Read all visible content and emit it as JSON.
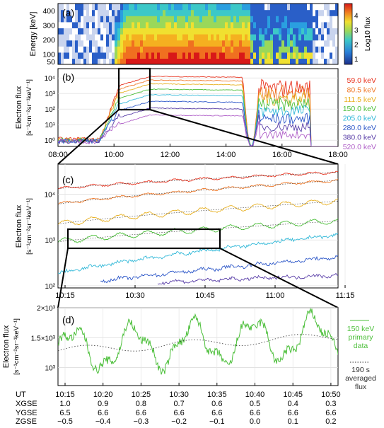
{
  "chart_data": [
    {
      "panel": "(a)",
      "type": "heatmap",
      "ylabel": "Energy [keV]",
      "yticks": [
        50,
        100,
        200,
        300,
        400
      ],
      "colorbar": {
        "label": "Log10 flux",
        "ticks": [
          1,
          2,
          3,
          4
        ]
      },
      "notes": "Electron energy spectrogram 08:00-18:00; high flux 10:00-14:50, dropouts near 14:50-15:10 and intermittent flux until ~17:00"
    },
    {
      "panel": "(b)",
      "type": "line",
      "ylabel": "Electron flux",
      "yunit": "[s⁻¹cm⁻²sr⁻¹keV⁻¹]",
      "yticks": [
        "10⁰",
        "10¹",
        "10²",
        "10³",
        "10⁴"
      ],
      "xticks": [
        "08:00",
        "10:00",
        "12:00",
        "14:00",
        "16:00",
        "18:00"
      ],
      "series": [
        {
          "name": "59.0  keV",
          "color": "#e8321e",
          "plateau": 12000
        },
        {
          "name": "80.5  keV",
          "color": "#f07a2a",
          "plateau": 7000
        },
        {
          "name": "111.5  keV",
          "color": "#e8b020",
          "plateau": 4000
        },
        {
          "name": "150.0  keV",
          "color": "#4cbf3a",
          "plateau": 1800
        },
        {
          "name": "205.0  keV",
          "color": "#30b8d8",
          "plateau": 800
        },
        {
          "name": "280.0  keV",
          "color": "#2b56c8",
          "plateau": 300
        },
        {
          "name": "380.0  keV",
          "color": "#5a3fa8",
          "plateau": 110
        },
        {
          "name": "520.0  keV",
          "color": "#b060c8",
          "plateau": 40
        }
      ]
    },
    {
      "panel": "(c)",
      "type": "line",
      "ylabel": "Electron flux",
      "yunit": "[s⁻¹cm⁻²sr⁻¹keV⁻¹]",
      "yticks": [
        "10²",
        "10³",
        "10⁴"
      ],
      "xticks": [
        "10:15",
        "10:30",
        "10:45",
        "11:00",
        "11:15"
      ],
      "series": [
        {
          "name": "59.0 keV",
          "start": 13000,
          "end": 30000
        },
        {
          "name": "80.5 keV",
          "start": 6000,
          "end": 20000
        },
        {
          "name": "111.5 keV",
          "start": 2200,
          "end": 7000
        },
        {
          "name": "150.0 keV",
          "start": 900,
          "end": 2600
        },
        {
          "name": "205.0 keV",
          "start": 180,
          "end": 1300
        },
        {
          "name": "280.0 keV",
          "start": 90,
          "end": 420
        },
        {
          "name": "380.0 keV",
          "start": 90,
          "end": 170
        }
      ]
    },
    {
      "panel": "(d)",
      "type": "line",
      "ylabel": "Electron flux",
      "yunit": "[s⁻¹cm⁻²sr⁻¹keV⁻¹]",
      "ylim": [
        700,
        2000
      ],
      "yticks": [
        "10³",
        "1.5×10³",
        "2×10³"
      ],
      "legend": {
        "primary": [
          "150 keV",
          "primary",
          "data"
        ],
        "averaged": [
          "190 s",
          "averaged",
          "flux"
        ]
      },
      "time_rows": {
        "labels": [
          "UT",
          "XGSE",
          "YGSE",
          "ZGSE"
        ],
        "UT": [
          "10:15",
          "10:20",
          "10:25",
          "10:30",
          "10:35",
          "10:40",
          "10:45",
          "10:50"
        ],
        "X": [
          "1.0",
          "0.9",
          "0.8",
          "0.7",
          "0.6",
          "0.5",
          "0.4",
          "0.3"
        ],
        "Y": [
          "6.5",
          "6.6",
          "6.6",
          "6.6",
          "6.6",
          "6.6",
          "6.6",
          "6.6"
        ],
        "Z": [
          "−0.5",
          "−0.4",
          "−0.3",
          "−0.2",
          "−0.1",
          "0.0",
          "0.1",
          "0.2"
        ]
      },
      "oscillation_period_s": 190
    }
  ]
}
